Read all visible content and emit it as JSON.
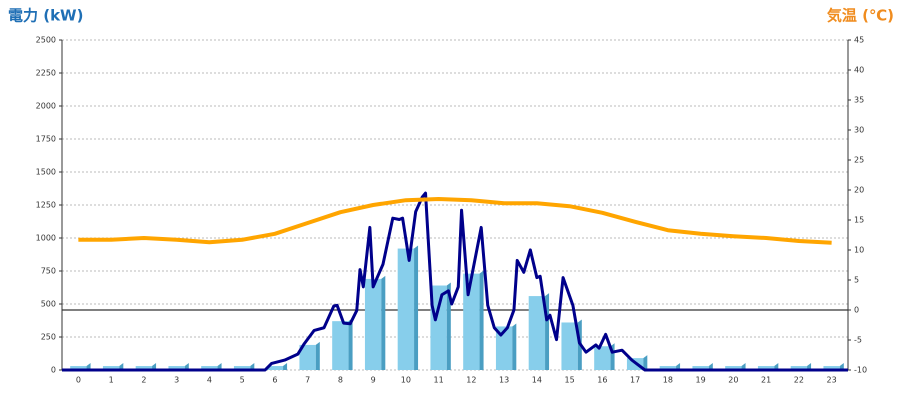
{
  "chart_data": {
    "type": "combo",
    "y_title": "電力 (kW)",
    "y2_title": "気温 (℃)",
    "categories": [
      "0",
      "1",
      "2",
      "3",
      "4",
      "5",
      "6",
      "7",
      "8",
      "9",
      "10",
      "11",
      "12",
      "13",
      "14",
      "15",
      "16",
      "17",
      "18",
      "19",
      "20",
      "21",
      "22",
      "23"
    ],
    "ylim": [
      0,
      2500
    ],
    "yticks": [
      0,
      250,
      500,
      750,
      1000,
      1250,
      1500,
      1750,
      2000,
      2250,
      2500
    ],
    "y2lim": [
      -10,
      45
    ],
    "y2ticks": [
      -10,
      -5,
      0,
      5,
      10,
      15,
      20,
      25,
      30,
      35,
      40,
      45
    ],
    "grid": true,
    "series": [
      {
        "type": "bar",
        "color": "#87ceeb",
        "values": [
          30,
          30,
          30,
          30,
          30,
          30,
          30,
          190,
          370,
          690,
          920,
          640,
          730,
          330,
          560,
          360,
          180,
          90,
          30,
          30,
          30,
          30,
          30,
          30
        ]
      },
      {
        "type": "line",
        "color": "#00008b",
        "x": [
          -0.5,
          5.7,
          5.9,
          6.3,
          6.7,
          6.9,
          7.2,
          7.5,
          7.8,
          7.9,
          8.1,
          8.3,
          8.5,
          8.6,
          8.7,
          8.9,
          9.0,
          9.3,
          9.6,
          9.8,
          9.9,
          10.1,
          10.3,
          10.5,
          10.6,
          10.8,
          10.9,
          11.1,
          11.3,
          11.4,
          11.6,
          11.7,
          11.9,
          12.3,
          12.5,
          12.7,
          12.9,
          13.1,
          13.3,
          13.4,
          13.6,
          13.8,
          14.0,
          14.1,
          14.3,
          14.4,
          14.6,
          14.8,
          15.1,
          15.3,
          15.5,
          15.8,
          15.9,
          16.1,
          16.3,
          16.6,
          16.9,
          17.3,
          23.5
        ],
        "values": [
          0,
          0,
          50,
          75,
          120,
          200,
          300,
          320,
          485,
          490,
          355,
          350,
          450,
          760,
          630,
          1080,
          630,
          800,
          1150,
          1140,
          1150,
          830,
          1200,
          1310,
          1340,
          490,
          380,
          570,
          600,
          500,
          630,
          1210,
          570,
          1080,
          490,
          320,
          265,
          320,
          455,
          830,
          740,
          910,
          700,
          710,
          380,
          415,
          230,
          700,
          490,
          205,
          135,
          190,
          165,
          270,
          135,
          150,
          75,
          0,
          0
        ]
      },
      {
        "type": "line",
        "axis": "y2",
        "color": "#ffa500",
        "values": [
          11.7,
          11.7,
          12.0,
          11.7,
          11.3,
          11.7,
          12.7,
          14.5,
          16.3,
          17.5,
          18.3,
          18.5,
          18.3,
          17.8,
          17.8,
          17.3,
          16.2,
          14.7,
          13.3,
          12.7,
          12.3,
          12.0,
          11.5,
          11.2
        ]
      }
    ]
  }
}
